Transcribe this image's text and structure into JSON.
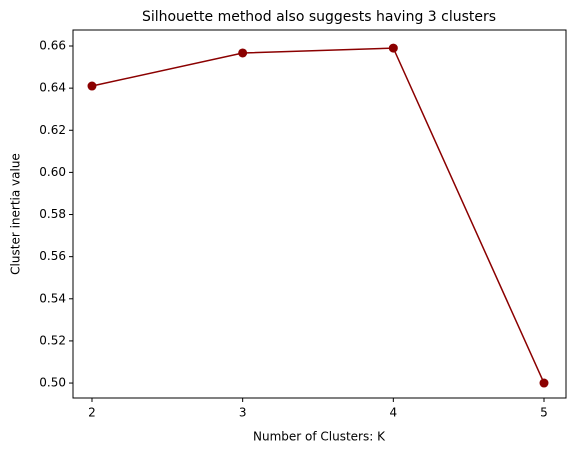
{
  "chart_data": {
    "type": "line",
    "title": "Silhouette method also suggests having 3 clusters",
    "x_label": "Number of Clusters: K",
    "y_label": "Cluster inertia value",
    "x": [
      2,
      3,
      4,
      5
    ],
    "series": [
      {
        "color": "#8b0000",
        "values": [
          0.641,
          0.6567,
          0.659,
          0.5
        ]
      }
    ],
    "xlim": [
      1.874,
      5.146
    ],
    "xticks": [
      2,
      3,
      4,
      5
    ],
    "ylim": [
      0.4929,
      0.6676
    ],
    "yticks": [
      {
        "value": 0.5,
        "label": "0.50"
      },
      {
        "value": 0.52,
        "label": "0.52"
      },
      {
        "value": 0.54,
        "label": "0.54"
      },
      {
        "value": 0.56,
        "label": "0.56"
      },
      {
        "value": 0.58,
        "label": "0.58"
      },
      {
        "value": 0.6,
        "label": "0.60"
      },
      {
        "value": 0.62,
        "label": "0.62"
      },
      {
        "value": 0.64,
        "label": "0.64"
      },
      {
        "value": 0.66,
        "label": "0.66"
      }
    ],
    "grid": false
  }
}
